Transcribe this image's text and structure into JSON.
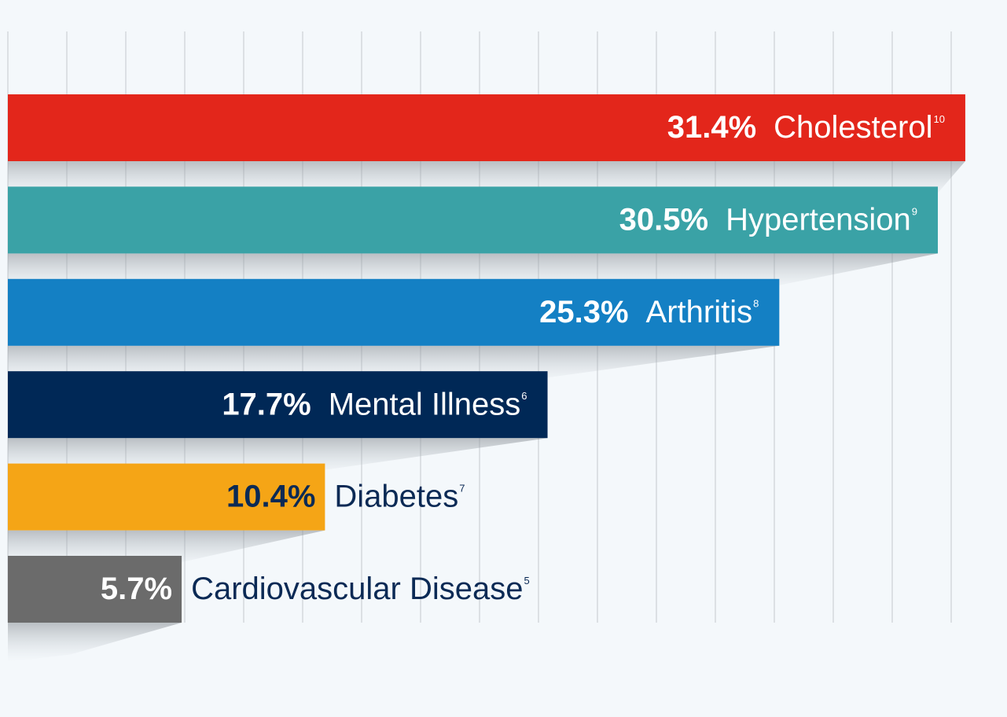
{
  "chart_data": {
    "type": "bar",
    "orientation": "horizontal",
    "categories": [
      "Cholesterol",
      "Hypertension",
      "Arthritis",
      "Mental Illness",
      "Diabetes",
      "Cardiovascular Disease"
    ],
    "footnotes": [
      "10",
      "9",
      "8",
      "6",
      "7",
      "5"
    ],
    "values": [
      31.4,
      30.5,
      25.3,
      17.7,
      10.4,
      5.7
    ],
    "value_labels": [
      "31.4%",
      "30.5%",
      "25.3%",
      "17.7%",
      "10.4%",
      "5.7%"
    ],
    "colors": [
      "#e3261b",
      "#3aa2a6",
      "#1480c4",
      "#002856",
      "#f5a516",
      "#6b6b6b"
    ],
    "value_label_colors": [
      "#ffffff",
      "#ffffff",
      "#ffffff",
      "#ffffff",
      "#0b2a55",
      "#ffffff"
    ],
    "xlim": [
      0,
      33
    ],
    "grid": true
  }
}
